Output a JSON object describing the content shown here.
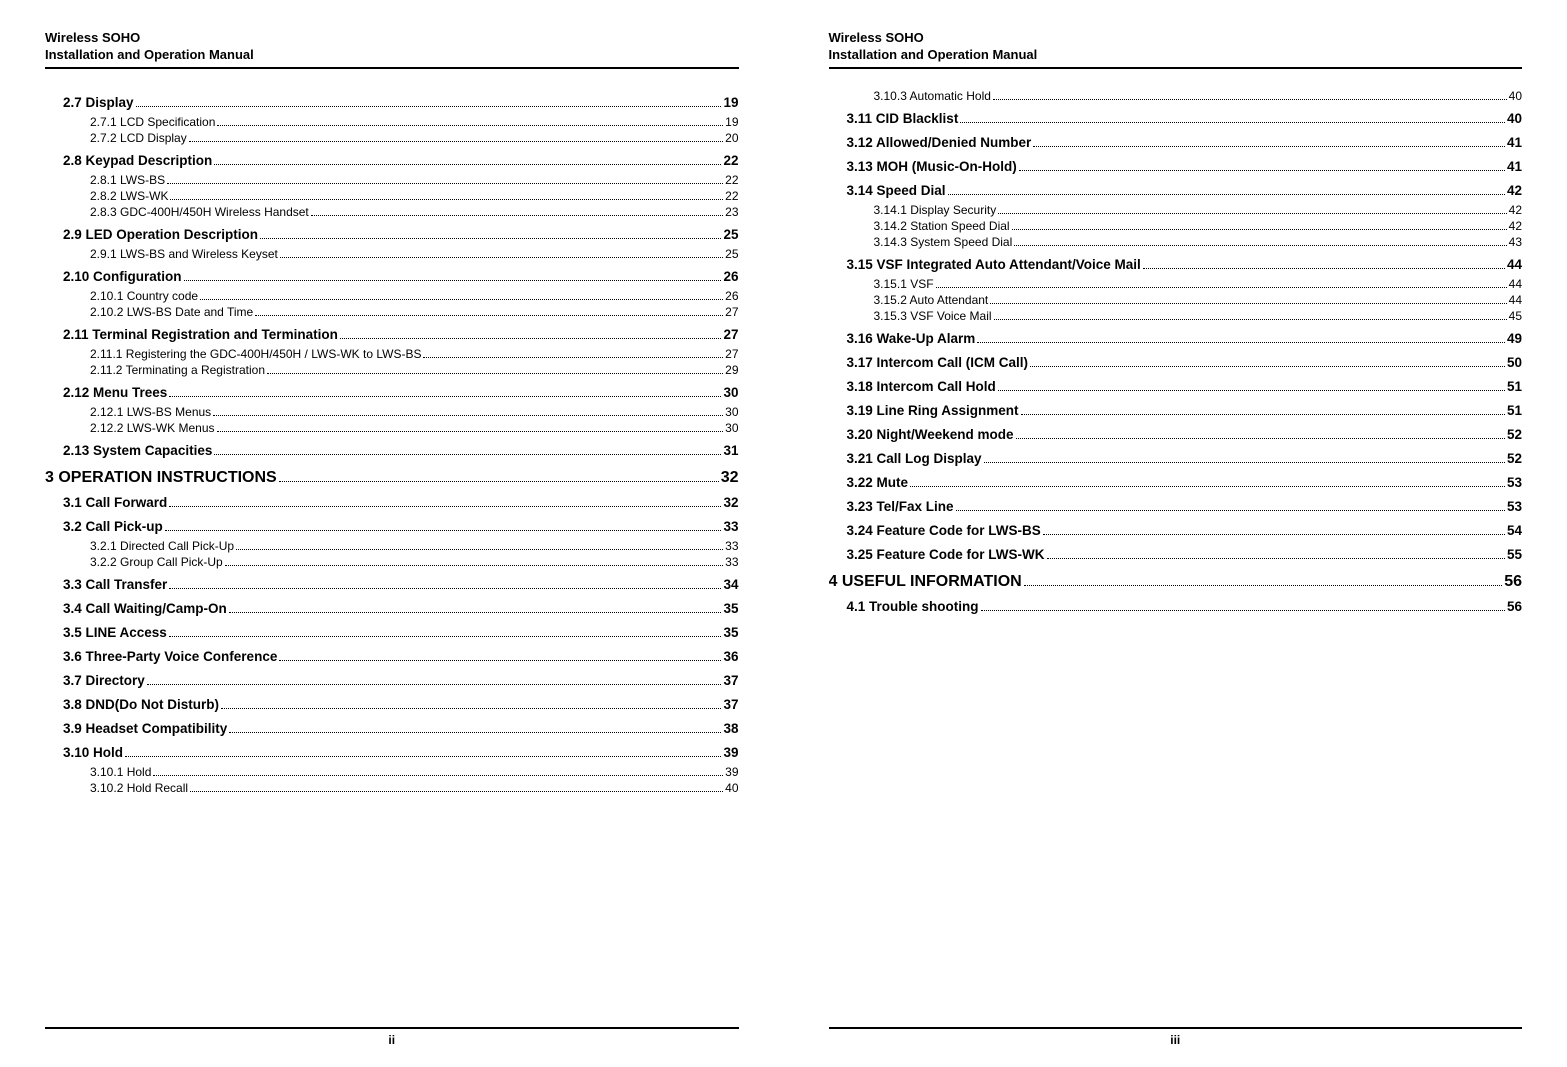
{
  "header": {
    "line1": "Wireless SOHO",
    "line2": "Installation and Operation Manual"
  },
  "footer": {
    "left": "ii",
    "right": "iii"
  },
  "left_toc": [
    {
      "level": 2,
      "label": "2.7 Display",
      "page": "19"
    },
    {
      "level": 3,
      "label": "2.7.1 LCD Specification",
      "page": "19"
    },
    {
      "level": 3,
      "label": "2.7.2 LCD Display",
      "page": "20"
    },
    {
      "level": 2,
      "label": "2.8 Keypad Description",
      "page": "22"
    },
    {
      "level": 3,
      "label": "2.8.1 LWS-BS",
      "page": "22"
    },
    {
      "level": 3,
      "label": "2.8.2 LWS-WK",
      "page": "22"
    },
    {
      "level": 3,
      "label": "2.8.3 GDC-400H/450H Wireless Handset",
      "page": "23"
    },
    {
      "level": 2,
      "label": "2.9 LED Operation Description",
      "page": "25"
    },
    {
      "level": 3,
      "label": "2.9.1 LWS-BS and Wireless Keyset",
      "page": "25"
    },
    {
      "level": 2,
      "label": "2.10 Configuration",
      "page": "26"
    },
    {
      "level": 3,
      "label": "2.10.1 Country code",
      "page": "26"
    },
    {
      "level": 3,
      "label": "2.10.2 LWS-BS Date and Time",
      "page": "27"
    },
    {
      "level": 2,
      "label": "2.11 Terminal Registration and Termination",
      "page": "27"
    },
    {
      "level": 3,
      "label": "2.11.1 Registering the GDC-400H/450H / LWS-WK to LWS-BS",
      "page": "27"
    },
    {
      "level": 3,
      "label": "2.11.2 Terminating a Registration",
      "page": "29"
    },
    {
      "level": 2,
      "label": "2.12 Menu Trees",
      "page": "30"
    },
    {
      "level": 3,
      "label": "2.12.1 LWS-BS Menus",
      "page": "30"
    },
    {
      "level": 3,
      "label": "2.12.2 LWS-WK Menus",
      "page": "30"
    },
    {
      "level": 2,
      "label": "2.13 System Capacities",
      "page": "31"
    },
    {
      "level": 1,
      "label": "3 OPERATION INSTRUCTIONS",
      "page": "32"
    },
    {
      "level": 2,
      "label": "3.1 Call Forward",
      "page": "32"
    },
    {
      "level": 2,
      "label": "3.2 Call Pick-up",
      "page": "33"
    },
    {
      "level": 3,
      "label": "3.2.1 Directed Call Pick-Up",
      "page": "33"
    },
    {
      "level": 3,
      "label": "3.2.2 Group Call Pick-Up",
      "page": "33"
    },
    {
      "level": 2,
      "label": "3.3 Call Transfer",
      "page": "34"
    },
    {
      "level": 2,
      "label": "3.4 Call Waiting/Camp-On",
      "page": "35"
    },
    {
      "level": 2,
      "label": "3.5 LINE Access",
      "page": "35"
    },
    {
      "level": 2,
      "label": "3.6 Three-Party Voice Conference",
      "page": "36"
    },
    {
      "level": 2,
      "label": "3.7 Directory",
      "page": "37"
    },
    {
      "level": 2,
      "label": "3.8 DND(Do Not Disturb)",
      "page": "37"
    },
    {
      "level": 2,
      "label": "3.9 Headset Compatibility",
      "page": "38"
    },
    {
      "level": 2,
      "label": "3.10 Hold",
      "page": "39"
    },
    {
      "level": 3,
      "label": "3.10.1 Hold",
      "page": "39"
    },
    {
      "level": 3,
      "label": "3.10.2 Hold Recall",
      "page": "40"
    }
  ],
  "right_toc": [
    {
      "level": 3,
      "label": "3.10.3 Automatic Hold",
      "page": "40"
    },
    {
      "level": 2,
      "label": "3.11 CID Blacklist",
      "page": "40"
    },
    {
      "level": 2,
      "label": "3.12 Allowed/Denied Number",
      "page": "41"
    },
    {
      "level": 2,
      "label": "3.13 MOH (Music-On-Hold)",
      "page": "41"
    },
    {
      "level": 2,
      "label": "3.14 Speed Dial",
      "page": "42"
    },
    {
      "level": 3,
      "label": "3.14.1 Display Security",
      "page": "42"
    },
    {
      "level": 3,
      "label": "3.14.2 Station Speed Dial",
      "page": "42"
    },
    {
      "level": 3,
      "label": "3.14.3 System Speed Dial",
      "page": "43"
    },
    {
      "level": 2,
      "label": "3.15 VSF Integrated Auto Attendant/Voice Mail",
      "page": "44"
    },
    {
      "level": 3,
      "label": "3.15.1 VSF",
      "page": "44"
    },
    {
      "level": 3,
      "label": "3.15.2 Auto Attendant",
      "page": "44"
    },
    {
      "level": 3,
      "label": "3.15.3 VSF Voice Mail",
      "page": "45"
    },
    {
      "level": 2,
      "label": "3.16 Wake-Up Alarm",
      "page": "49"
    },
    {
      "level": 2,
      "label": "3.17 Intercom Call (ICM Call)",
      "page": "50"
    },
    {
      "level": 2,
      "label": "3.18 Intercom Call Hold",
      "page": "51"
    },
    {
      "level": 2,
      "label": "3.19 Line Ring Assignment",
      "page": "51"
    },
    {
      "level": 2,
      "label": "3.20 Night/Weekend mode",
      "page": "52"
    },
    {
      "level": 2,
      "label": "3.21 Call Log Display",
      "page": "52"
    },
    {
      "level": 2,
      "label": "3.22 Mute",
      "page": "53"
    },
    {
      "level": 2,
      "label": "3.23 Tel/Fax Line",
      "page": "53"
    },
    {
      "level": 2,
      "label": "3.24 Feature Code for LWS-BS",
      "page": "54"
    },
    {
      "level": 2,
      "label": "3.25 Feature Code for LWS-WK",
      "page": "55"
    },
    {
      "level": 1,
      "label": "4 USEFUL INFORMATION",
      "page": "56"
    },
    {
      "level": 2,
      "label": "4.1 Trouble shooting",
      "page": "56"
    }
  ]
}
